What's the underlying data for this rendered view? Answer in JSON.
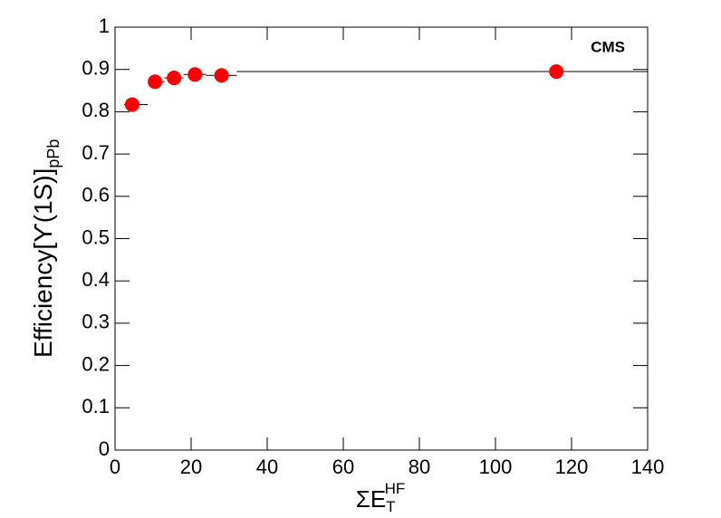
{
  "chart_data": {
    "type": "scatter",
    "annotation": "CMS",
    "xlabel": {
      "main": "ΣE",
      "sub": "T",
      "sup": "HF"
    },
    "ylabel": {
      "main": "Efficiency[ϒ(1S)]",
      "sub": "pPb"
    },
    "x": [
      4.5,
      10.5,
      15.5,
      21,
      28,
      116
    ],
    "x_low": [
      2.4,
      8.6,
      13,
      18,
      24,
      32
    ],
    "x_high": [
      8.6,
      13,
      18,
      24,
      32,
      140
    ],
    "series": [
      {
        "color": "#ff0000",
        "values": [
          0.817,
          0.871,
          0.88,
          0.888,
          0.886,
          0.895
        ]
      }
    ],
    "xlim": [
      0,
      140
    ],
    "xticks": [
      0,
      20,
      40,
      60,
      80,
      100,
      120,
      140
    ],
    "ylim": [
      0,
      1
    ],
    "yticks": [
      0,
      0.1,
      0.2,
      0.3,
      0.4,
      0.5,
      0.6,
      0.7,
      0.8,
      0.9,
      1
    ],
    "grid": false
  }
}
